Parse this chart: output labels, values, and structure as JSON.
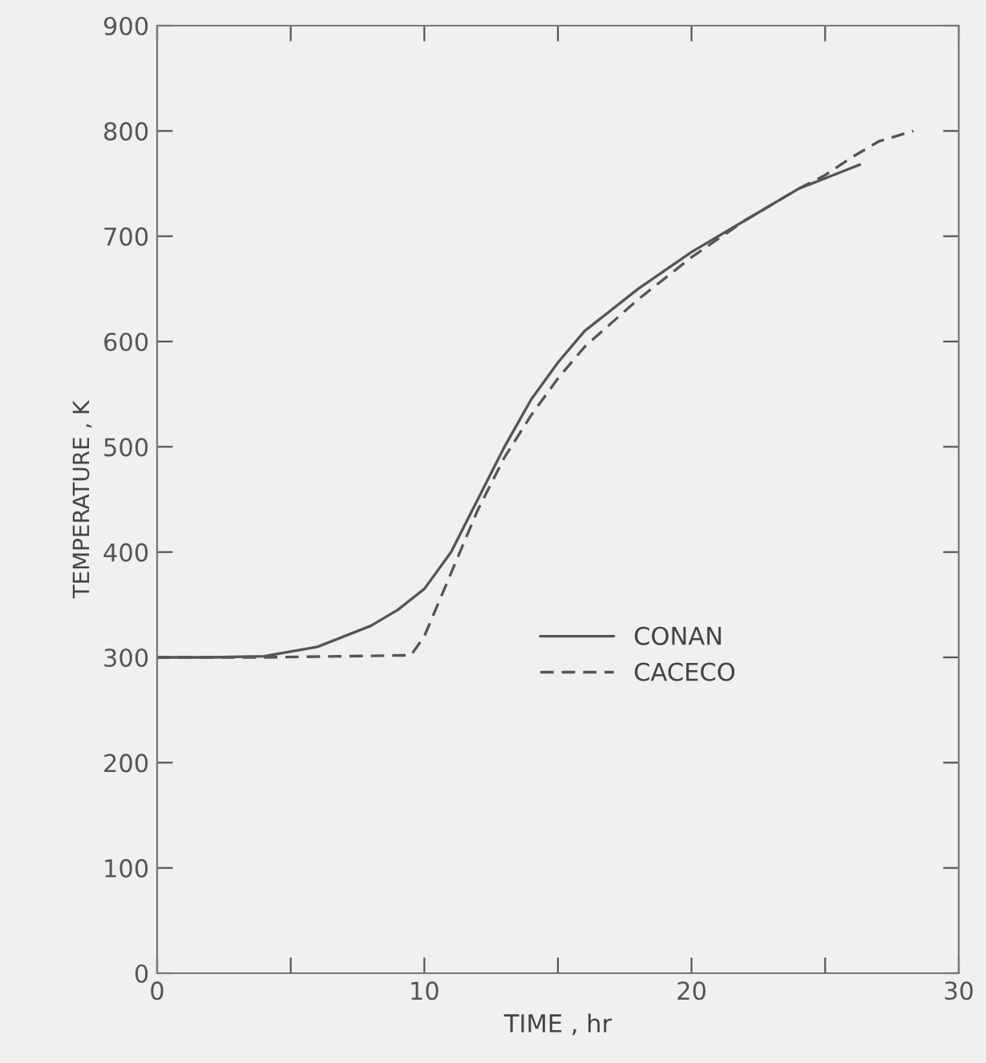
{
  "chart_data": {
    "type": "line",
    "xlabel": "TIME , hr",
    "ylabel": "TEMPERATURE , K",
    "xlim": [
      0,
      30
    ],
    "ylim": [
      0,
      900
    ],
    "xticks": [
      0,
      {
        "value": 5,
        "label": null
      },
      10,
      {
        "value": 15,
        "label": null
      },
      20,
      {
        "value": 25,
        "label": null
      },
      30
    ],
    "yticks": [
      0,
      100,
      200,
      300,
      400,
      500,
      600,
      700,
      800,
      900
    ],
    "grid": false,
    "legend": "lower center",
    "series": [
      {
        "name": "CONAN",
        "color": "#555555",
        "line_style": "solid",
        "x": [
          0,
          2,
          4,
          6,
          8,
          9,
          10,
          11,
          12,
          13,
          14,
          15,
          16,
          18,
          20,
          22,
          24,
          26,
          26.3
        ],
        "values": [
          300,
          300,
          301,
          310,
          330,
          345,
          365,
          400,
          450,
          500,
          545,
          580,
          610,
          650,
          685,
          715,
          745,
          765,
          768
        ]
      },
      {
        "name": "CACECO",
        "color": "#555555",
        "line_style": "dashed",
        "x": [
          0,
          4,
          9.5,
          10,
          11,
          12,
          13,
          14,
          15,
          16,
          18,
          20,
          22,
          24,
          25,
          26,
          27,
          28.3
        ],
        "values": [
          300,
          300,
          302,
          320,
          380,
          440,
          490,
          530,
          565,
          595,
          640,
          680,
          715,
          745,
          758,
          775,
          790,
          800
        ]
      }
    ]
  }
}
